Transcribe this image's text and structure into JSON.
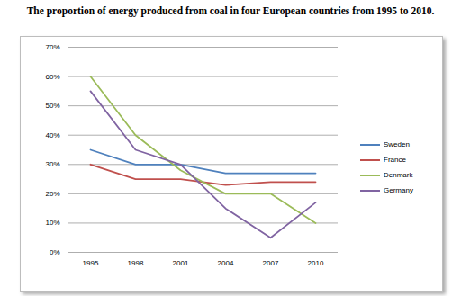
{
  "chart_data": {
    "type": "line",
    "title": "The proportion of energy produced from coal in four European countries from 1995 to 2010.",
    "categories": [
      "1995",
      "1998",
      "2001",
      "2004",
      "2007",
      "2010"
    ],
    "series": [
      {
        "name": "Sweden",
        "color": "#4f81bd",
        "values": [
          35,
          30,
          30,
          27,
          27,
          27
        ]
      },
      {
        "name": "France",
        "color": "#c0504d",
        "values": [
          30,
          25,
          25,
          23,
          24,
          24
        ]
      },
      {
        "name": "Denmark",
        "color": "#9bbb59",
        "values": [
          60,
          40,
          28,
          20,
          20,
          10
        ]
      },
      {
        "name": "Germany",
        "color": "#8064a2",
        "values": [
          55,
          35,
          30,
          15,
          5,
          17
        ]
      }
    ],
    "ylim": [
      0,
      70
    ],
    "yticks": [
      {
        "value": 0,
        "label": "0%"
      },
      {
        "value": 10,
        "label": "10%"
      },
      {
        "value": 20,
        "label": "20%"
      },
      {
        "value": 30,
        "label": "30%"
      },
      {
        "value": 40,
        "label": "40%"
      },
      {
        "value": 50,
        "label": "50%"
      },
      {
        "value": 60,
        "label": "60%"
      },
      {
        "value": 70,
        "label": "70%"
      }
    ],
    "grid": true,
    "legend": "right"
  }
}
